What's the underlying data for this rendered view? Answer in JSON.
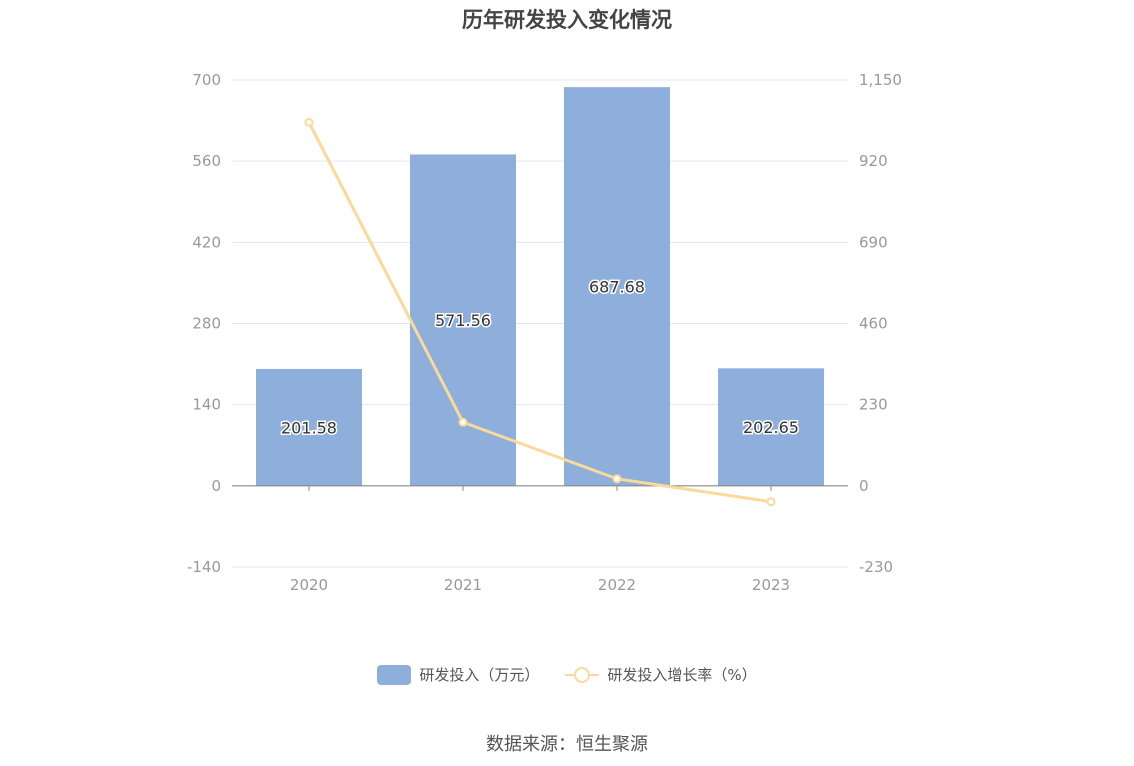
{
  "chart_data": {
    "type": "bar",
    "title": "历年研发投入变化情况",
    "categories": [
      "2020",
      "2021",
      "2022",
      "2023"
    ],
    "series": [
      {
        "name": "研发投入（万元）",
        "type": "bar",
        "axis": "left",
        "values": [
          201.58,
          571.56,
          687.68,
          202.65
        ],
        "labels": [
          "201.58",
          "571.56",
          "687.68",
          "202.65"
        ]
      },
      {
        "name": "研发投入增长率（%）",
        "type": "line",
        "axis": "right",
        "values": [
          1030,
          180,
          20,
          -45
        ]
      }
    ],
    "y_left": {
      "ticks": [
        "700",
        "560",
        "420",
        "280",
        "140",
        "0",
        "-140"
      ],
      "ylim": [
        -140,
        700
      ]
    },
    "y_right": {
      "ticks": [
        "1,150",
        "920",
        "690",
        "460",
        "230",
        "0",
        "-230"
      ],
      "ylim": [
        -230,
        1150
      ]
    },
    "grid": true,
    "legend_position": "bottom-center",
    "colors": {
      "bar": "#8eaedb",
      "line": "#fad999",
      "grid": "#e3e7f3",
      "axis": "#999999"
    }
  },
  "source_text": "数据来源：恒生聚源"
}
